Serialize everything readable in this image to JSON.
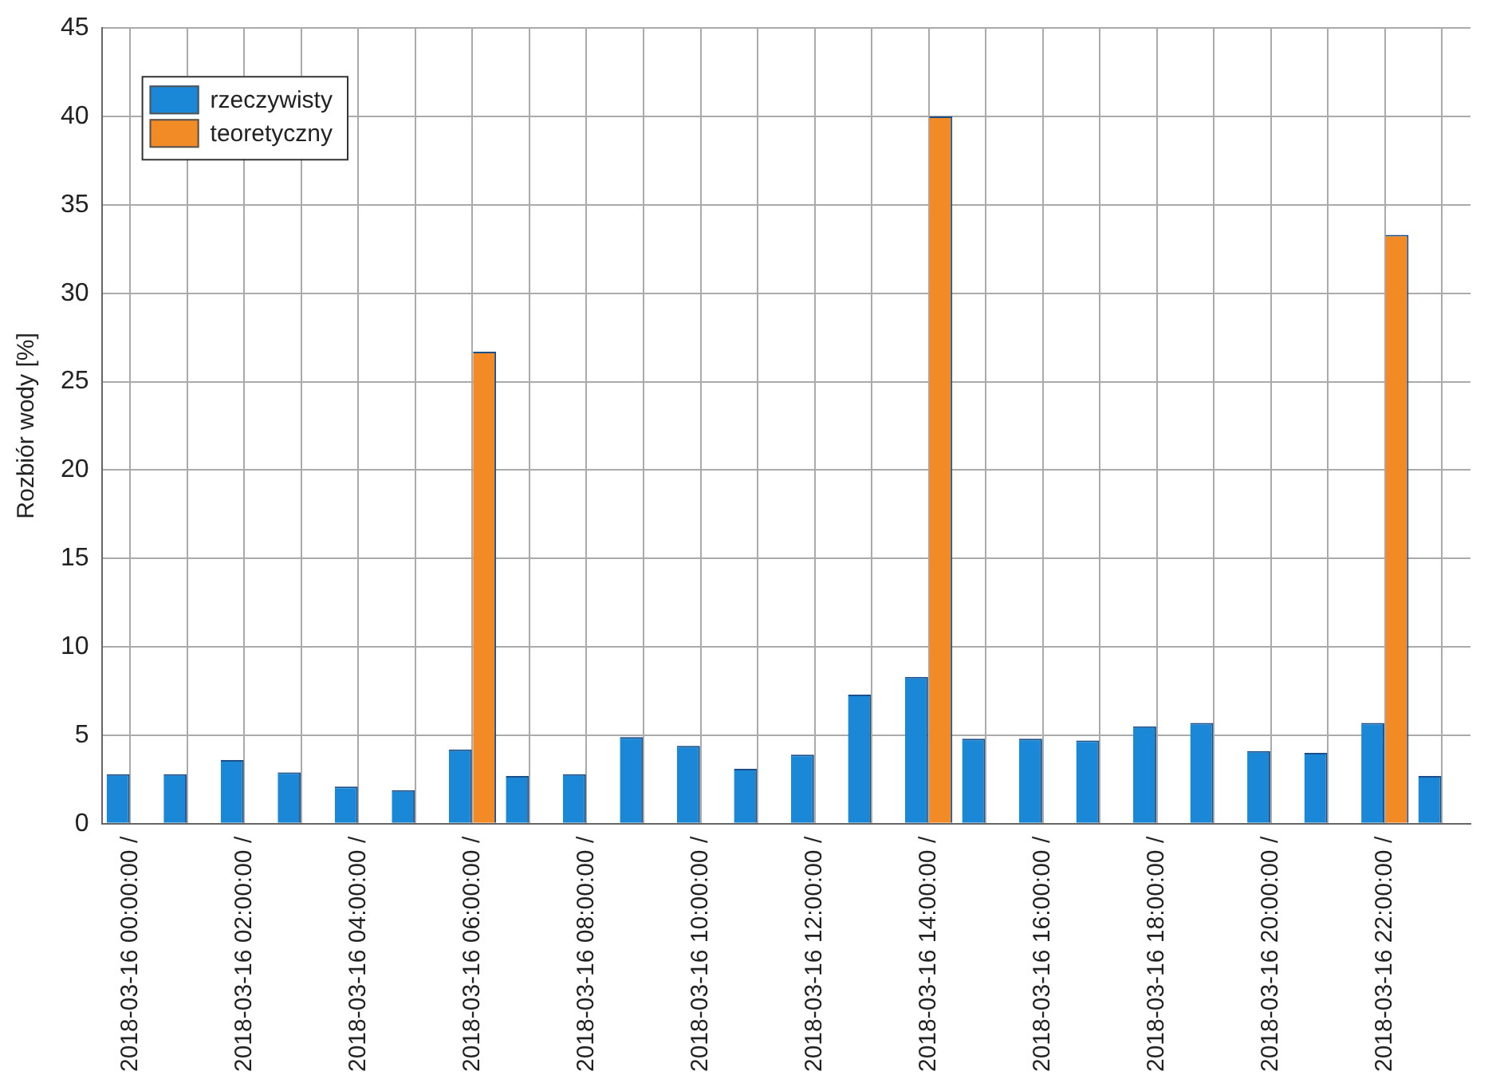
{
  "chart_data": {
    "type": "bar",
    "ylabel": "Rozbiór wody [%]",
    "categories": [
      "2018-03-16 00:00:00 /",
      null,
      "2018-03-16 02:00:00 /",
      null,
      "2018-03-16 04:00:00 /",
      null,
      "2018-03-16 06:00:00 /",
      null,
      "2018-03-16 08:00:00 /",
      null,
      "2018-03-16 10:00:00 /",
      null,
      "2018-03-16 12:00:00 /",
      null,
      "2018-03-16 14:00:00 /",
      null,
      "2018-03-16 16:00:00 /",
      null,
      "2018-03-16 18:00:00 /",
      null,
      "2018-03-16 20:00:00 /",
      null,
      "2018-03-16 22:00:00 /",
      null
    ],
    "series": [
      {
        "name": "rzeczywisty",
        "color": "#1a88d6",
        "values": [
          2.8,
          2.8,
          3.6,
          2.9,
          2.1,
          1.9,
          4.2,
          2.7,
          2.8,
          4.9,
          4.4,
          3.1,
          3.9,
          7.3,
          8.3,
          4.8,
          4.8,
          4.7,
          5.5,
          5.7,
          4.1,
          4.0,
          5.7,
          2.7
        ]
      },
      {
        "name": "teoretyczny",
        "color": "#f28a26",
        "values": [
          null,
          null,
          null,
          null,
          null,
          null,
          26.7,
          null,
          null,
          null,
          null,
          null,
          null,
          null,
          40.0,
          null,
          null,
          null,
          null,
          null,
          null,
          null,
          33.3,
          null
        ]
      }
    ],
    "ylim": [
      0,
      45
    ],
    "yticks": [
      0,
      5,
      10,
      15,
      20,
      25,
      30,
      35,
      40,
      45
    ],
    "grid": true,
    "legend": "top left"
  }
}
